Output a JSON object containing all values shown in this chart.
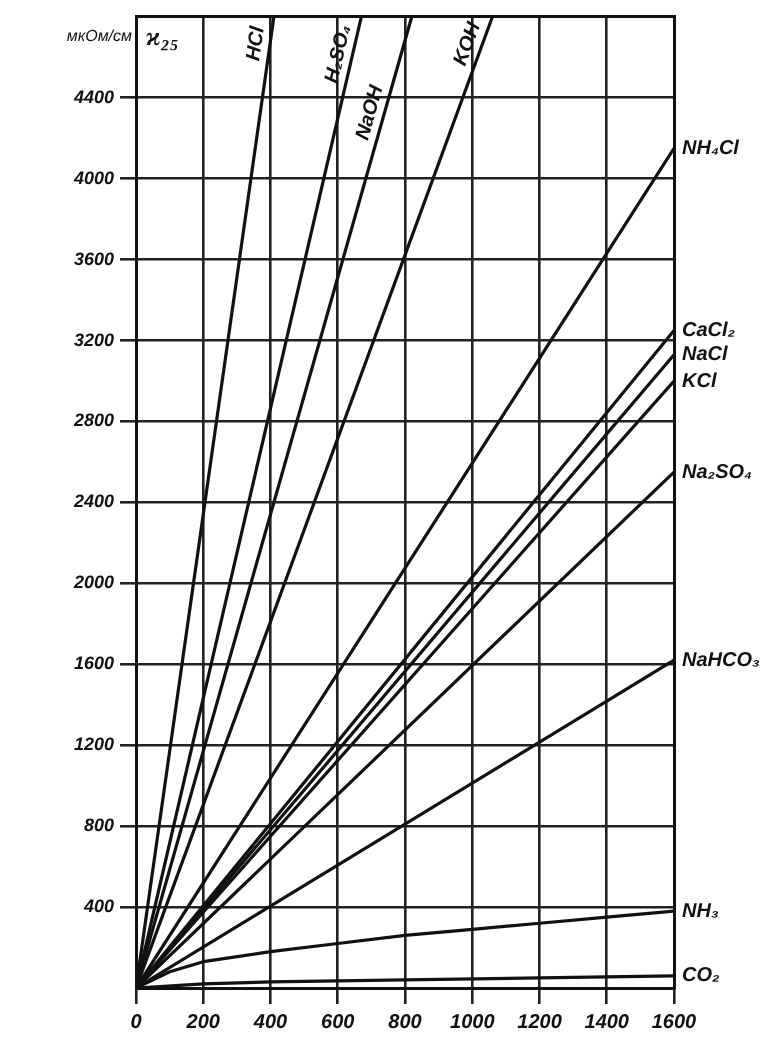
{
  "chart_data": {
    "type": "line",
    "ylabel": "мкОм/см",
    "annotations": [
      "ϰ₂₅"
    ],
    "xlim": [
      0,
      1600
    ],
    "xticks": [
      0,
      200,
      400,
      600,
      800,
      1000,
      1200,
      1400,
      1600
    ],
    "ylim": [
      0,
      4800
    ],
    "yticks": [
      400,
      800,
      1200,
      1600,
      2000,
      2400,
      2800,
      3200,
      3600,
      4000,
      4400
    ],
    "grid": true,
    "legend": false,
    "marker": "none",
    "line_style": "solid",
    "series": [
      {
        "name": "HCl",
        "color": "#111111",
        "x": [
          0,
          410
        ],
        "values": [
          0,
          4800
        ]
      },
      {
        "name": "H₂SO₄",
        "color": "#111111",
        "x": [
          0,
          670
        ],
        "values": [
          0,
          4800
        ]
      },
      {
        "name": "NaOH",
        "color": "#111111",
        "x": [
          0,
          820
        ],
        "values": [
          0,
          4800
        ]
      },
      {
        "name": "KOH",
        "color": "#111111",
        "x": [
          0,
          1060
        ],
        "values": [
          0,
          4800
        ]
      },
      {
        "name": "NH₄Cl",
        "color": "#111111",
        "x": [
          0,
          1600
        ],
        "values": [
          0,
          4150
        ]
      },
      {
        "name": "CaCl₂",
        "color": "#111111",
        "x": [
          0,
          1600
        ],
        "values": [
          0,
          3250
        ]
      },
      {
        "name": "NaCl",
        "color": "#111111",
        "x": [
          0,
          1600
        ],
        "values": [
          0,
          3130
        ]
      },
      {
        "name": "KCl",
        "color": "#111111",
        "x": [
          0,
          1600
        ],
        "values": [
          0,
          3000
        ]
      },
      {
        "name": "Na₂SO₄",
        "color": "#111111",
        "x": [
          0,
          1600
        ],
        "values": [
          0,
          2550
        ]
      },
      {
        "name": "NaHCO₃",
        "color": "#111111",
        "x": [
          0,
          1600
        ],
        "values": [
          0,
          1620
        ]
      },
      {
        "name": "NH₃",
        "color": "#111111",
        "x": [
          0,
          100,
          200,
          400,
          600,
          800,
          1000,
          1200,
          1400,
          1600
        ],
        "values": [
          0,
          80,
          130,
          180,
          220,
          260,
          290,
          320,
          350,
          380
        ]
      },
      {
        "name": "CO₂",
        "color": "#111111",
        "x": [
          0,
          200,
          400,
          800,
          1200,
          1600
        ],
        "values": [
          0,
          20,
          30,
          40,
          50,
          60
        ]
      }
    ]
  }
}
